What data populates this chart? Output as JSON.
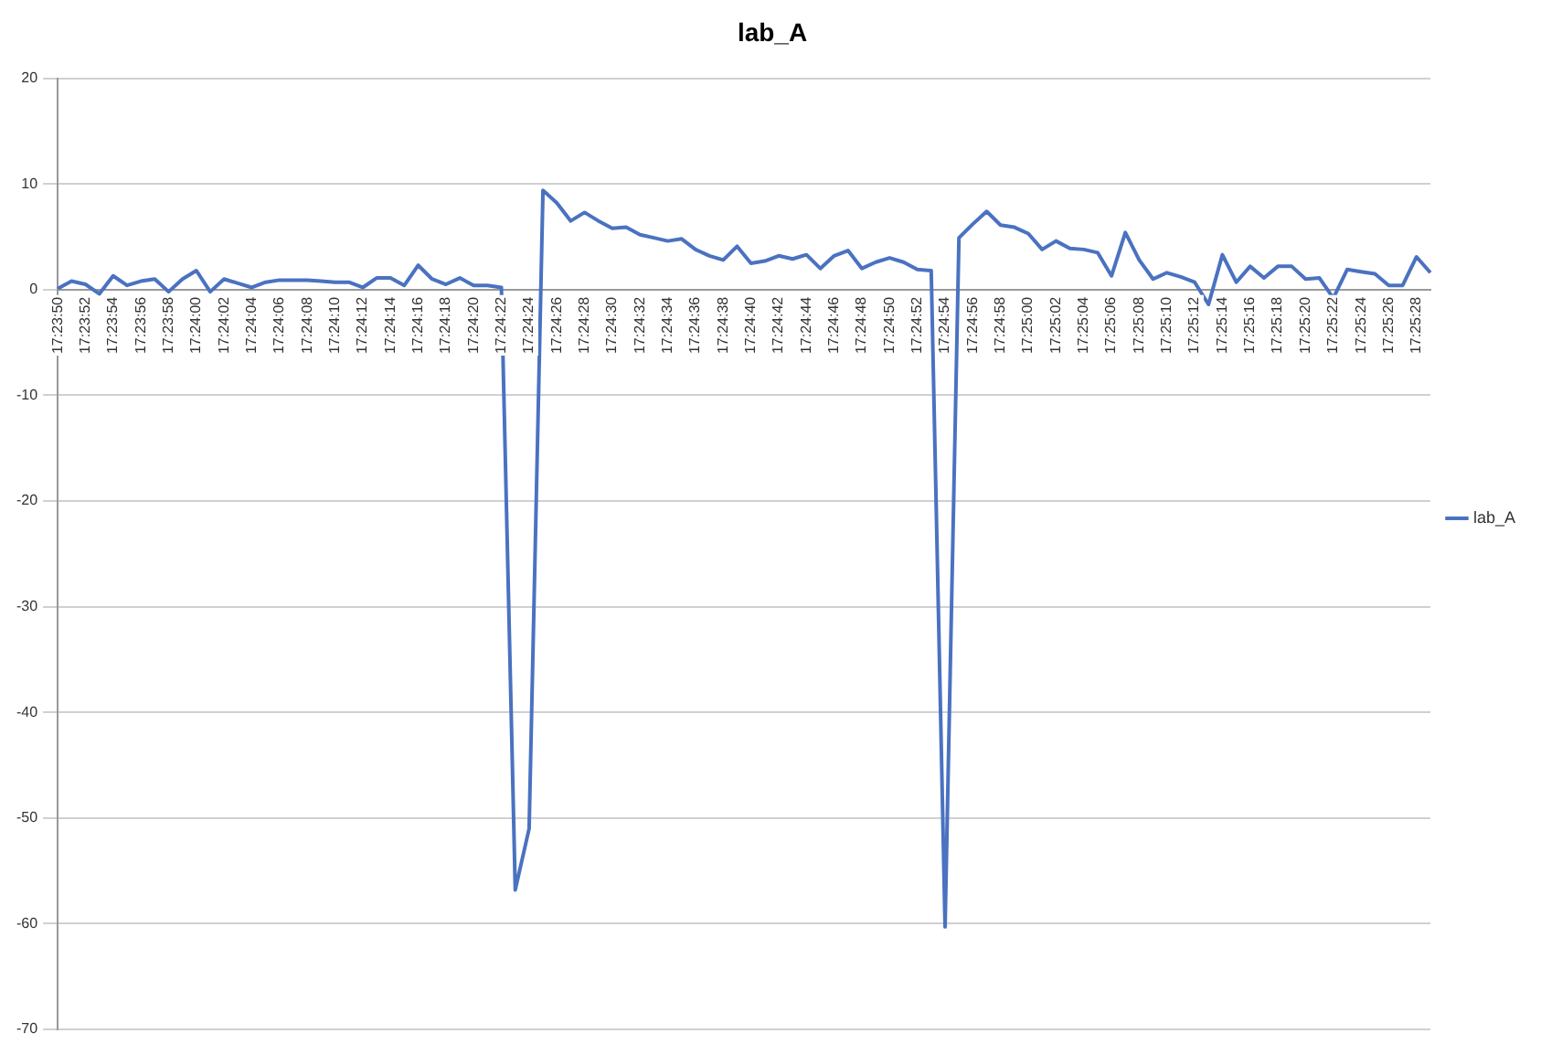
{
  "chart_data": {
    "type": "line",
    "title": "lab_A",
    "categories": [
      "17:23:50",
      null,
      "17:23:52",
      null,
      "17:23:54",
      null,
      "17:23:56",
      null,
      "17:23:58",
      null,
      "17:24:00",
      null,
      "17:24:02",
      null,
      "17:24:04",
      null,
      "17:24:06",
      null,
      "17:24:08",
      null,
      "17:24:10",
      null,
      "17:24:12",
      null,
      "17:24:14",
      null,
      "17:24:16",
      null,
      "17:24:18",
      null,
      "17:24:20",
      null,
      "17:24:22",
      null,
      "17:24:24",
      null,
      "17:24:26",
      null,
      "17:24:28",
      null,
      "17:24:30",
      null,
      "17:24:32",
      null,
      "17:24:34",
      null,
      "17:24:36",
      null,
      "17:24:38",
      null,
      "17:24:40",
      null,
      "17:24:42",
      null,
      "17:24:44",
      null,
      "17:24:46",
      null,
      "17:24:48",
      null,
      "17:24:50",
      null,
      "17:24:52",
      null,
      "17:24:54",
      null,
      "17:24:56",
      null,
      "17:24:58",
      null,
      "17:25:00",
      null,
      "17:25:02",
      null,
      "17:25:04",
      null,
      "17:25:06",
      null,
      "17:25:08",
      null,
      "17:25:10",
      null,
      "17:25:12",
      null,
      "17:25:14",
      null,
      "17:25:16",
      null,
      "17:25:18",
      null,
      "17:25:20",
      null,
      "17:25:22",
      null,
      "17:25:24",
      null,
      "17:25:26",
      null,
      "17:25:28",
      null
    ],
    "series": [
      {
        "name": "lab_A",
        "color": "#4a72c0",
        "values": [
          0.1,
          0.8,
          0.5,
          -0.4,
          1.3,
          0.4,
          0.8,
          1.0,
          -0.2,
          1.0,
          1.8,
          -0.2,
          1.0,
          0.6,
          0.2,
          0.7,
          0.9,
          0.9,
          0.9,
          0.8,
          0.7,
          0.7,
          0.2,
          1.1,
          1.1,
          0.4,
          2.3,
          1.0,
          0.5,
          1.1,
          0.4,
          0.4,
          0.2,
          -56.8,
          -51,
          9.4,
          8.2,
          6.5,
          7.3,
          6.5,
          5.8,
          5.9,
          5.2,
          4.9,
          4.6,
          4.8,
          3.8,
          3.2,
          2.8,
          4.1,
          2.5,
          2.7,
          3.2,
          2.9,
          3.3,
          2.0,
          3.2,
          3.7,
          2.0,
          2.6,
          3.0,
          2.6,
          1.9,
          1.8,
          -60.3,
          4.9,
          6.2,
          7.4,
          6.1,
          5.9,
          5.3,
          3.8,
          4.6,
          3.9,
          3.8,
          3.5,
          1.3,
          5.4,
          2.8,
          1.0,
          1.6,
          1.2,
          0.7,
          -1.4,
          3.3,
          0.7,
          2.2,
          1.1,
          2.2,
          2.2,
          1.0,
          1.1,
          -0.8,
          1.9,
          1.7,
          1.5,
          0.4,
          0.4,
          3.1,
          1.6
        ]
      }
    ],
    "ylim": [
      -70,
      20
    ],
    "yticks": [
      -70,
      -60,
      -50,
      -40,
      -30,
      -20,
      -10,
      0,
      10,
      20
    ],
    "grid": "y",
    "legend": "right",
    "marker": "none"
  }
}
